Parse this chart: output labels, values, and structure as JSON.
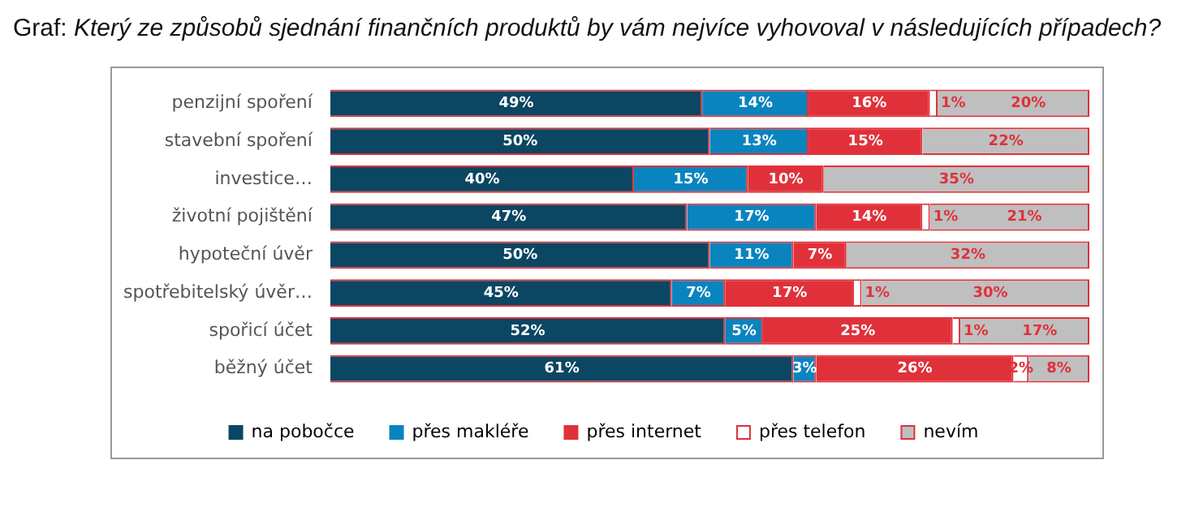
{
  "chart_data": {
    "type": "bar",
    "orientation": "horizontal",
    "stacked": true,
    "title": "Graf: Který ze způsobů sjednání finančních produktů by vám nejvíce vyhovoval v následujících případech?",
    "categories": [
      "penzijní spoření",
      "stavební spoření",
      "investice…",
      "životní pojištění",
      "hypoteční úvěr",
      "spotřebitelský úvěr…",
      "spořicí účet",
      "běžný účet"
    ],
    "series": [
      {
        "name": "na pobočce",
        "color": "#0b4662",
        "values": [
          49,
          50,
          40,
          47,
          50,
          45,
          52,
          61
        ],
        "value_labels": [
          "49%",
          "50%",
          "40%",
          "47%",
          "50%",
          "45%",
          "52%",
          "61%"
        ]
      },
      {
        "name": "přes makléře",
        "color": "#0a84bf",
        "values": [
          14,
          13,
          15,
          17,
          11,
          7,
          5,
          3
        ],
        "value_labels": [
          "14%",
          "13%",
          "15%",
          "17%",
          "11%",
          "7%",
          "5%",
          "3%"
        ]
      },
      {
        "name": "přes internet",
        "color": "#e0313a",
        "values": [
          16,
          15,
          10,
          14,
          7,
          17,
          25,
          26
        ],
        "value_labels": [
          "16%",
          "15%",
          "10%",
          "14%",
          "7%",
          "17%",
          "25%",
          "26%"
        ]
      },
      {
        "name": "přes telefon",
        "color": "#ffffff",
        "values": [
          1,
          null,
          null,
          1,
          null,
          1,
          1,
          2
        ],
        "value_labels": [
          "1%",
          null,
          null,
          "1%",
          null,
          "1%",
          "1%",
          "2%"
        ]
      },
      {
        "name": "nevím",
        "color": "#bfbfbf",
        "values": [
          20,
          22,
          35,
          21,
          32,
          30,
          17,
          8
        ],
        "value_labels": [
          "20%",
          "22%",
          "35%",
          "21%",
          "32%",
          "30%",
          "17%",
          "8%"
        ]
      }
    ],
    "tick_labels": "y",
    "legend": "bottom"
  }
}
